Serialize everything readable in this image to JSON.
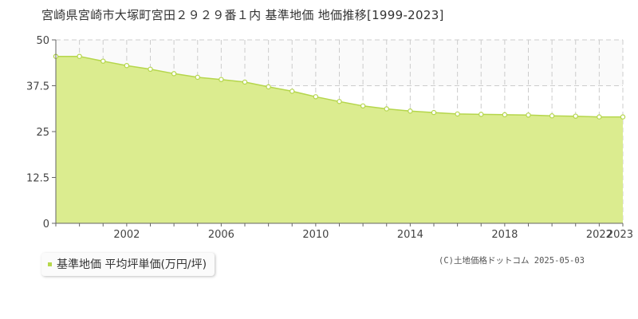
{
  "title": "宮崎県宮崎市大塚町宮田２９２９番１内 基準地価 地価推移[1999-2023]",
  "legend_label": "基準地価 平均坪単価(万円/坪)",
  "credit": "(C)土地価格ドットコム 2025-05-03",
  "colors": {
    "fill": "#dbec8f",
    "line": "#b5d64c",
    "marker": "#ffffff",
    "grid": "#cccccc",
    "axis": "#666666"
  },
  "chart_data": {
    "type": "area",
    "x": [
      1999,
      2000,
      2001,
      2002,
      2003,
      2004,
      2005,
      2006,
      2007,
      2008,
      2009,
      2010,
      2011,
      2012,
      2013,
      2014,
      2015,
      2016,
      2017,
      2018,
      2019,
      2020,
      2021,
      2022,
      2023
    ],
    "series": [
      {
        "values": [
          45.5,
          45.5,
          44.2,
          43.0,
          42.0,
          40.8,
          39.8,
          39.2,
          38.5,
          37.2,
          36.0,
          34.5,
          33.2,
          32.0,
          31.2,
          30.6,
          30.2,
          29.8,
          29.7,
          29.6,
          29.5,
          29.3,
          29.2,
          29.0,
          29.0
        ]
      }
    ],
    "xticks": [
      2002,
      2006,
      2010,
      2014,
      2018,
      2022,
      2023
    ],
    "yticks": [
      0,
      12.5,
      25,
      37.5,
      50
    ],
    "ytick_labels": [
      "0",
      "12.5",
      "25",
      "37.5",
      "50"
    ],
    "ylim": [
      0,
      50
    ],
    "xlim": [
      1999,
      2023
    ],
    "xlabel": "",
    "ylabel": "",
    "grid": true,
    "legend_position": "bottom-left"
  }
}
